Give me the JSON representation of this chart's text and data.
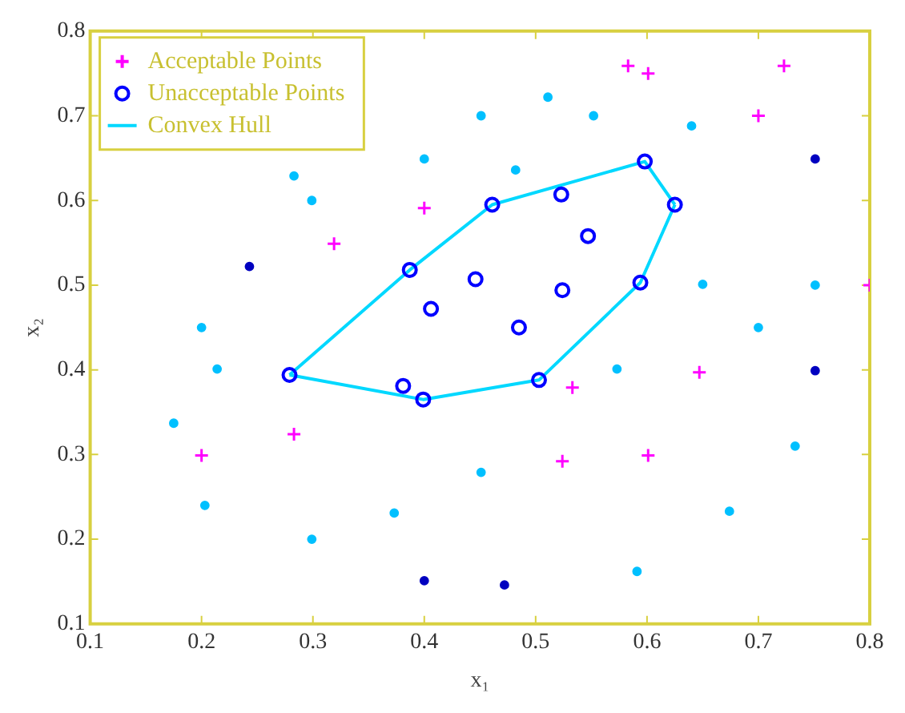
{
  "chart_data": {
    "type": "scatter",
    "xlabel": "x₁",
    "ylabel": "x₂",
    "xlim": [
      0.1,
      0.8
    ],
    "ylim": [
      0.1,
      0.8
    ],
    "xticks": [
      0.1,
      0.2,
      0.3,
      0.4,
      0.5,
      0.6,
      0.7,
      0.8
    ],
    "yticks": [
      0.1,
      0.2,
      0.3,
      0.4,
      0.5,
      0.6,
      0.7,
      0.8
    ],
    "grid": false,
    "legend": "top left",
    "series": [
      {
        "name": "Acceptable Points",
        "marker": "cross",
        "color": "#ff00ff",
        "x": [
          0.4,
          0.319,
          0.583,
          0.601,
          0.723,
          0.7,
          0.8,
          0.283,
          0.2,
          0.533,
          0.647,
          0.524,
          0.601
        ],
        "values": [
          0.591,
          0.549,
          0.759,
          0.75,
          0.759,
          0.7,
          0.5,
          0.324,
          0.299,
          0.379,
          0.397,
          0.292,
          0.299
        ]
      },
      {
        "name": "Unacceptable Points",
        "marker": "circle",
        "color": "#0000ff",
        "x": [
          0.279,
          0.387,
          0.461,
          0.598,
          0.625,
          0.594,
          0.503,
          0.399,
          0.406,
          0.523,
          0.547,
          0.446,
          0.524,
          0.485,
          0.381
        ],
        "values": [
          0.394,
          0.518,
          0.595,
          0.646,
          0.595,
          0.503,
          0.388,
          0.365,
          0.472,
          0.607,
          0.558,
          0.507,
          0.494,
          0.45,
          0.381
        ]
      },
      {
        "name": "Convex Hull",
        "type": "line",
        "marker": "none",
        "color": "#00d8ff",
        "x": [
          0.279,
          0.387,
          0.461,
          0.598,
          0.625
        ],
        "values": [
          0.394,
          0.518,
          0.595,
          0.646,
          0.595
        ]
      },
      {
        "type": "line",
        "marker": "none",
        "color": "#00d8ff",
        "x": [
          0.279,
          0.399,
          0.503,
          0.594,
          0.625
        ],
        "values": [
          0.394,
          0.365,
          0.388,
          0.503,
          0.595
        ]
      },
      {
        "marker": "circle",
        "color": "#00c0ff",
        "x": [
          0.4,
          0.283,
          0.299,
          0.2,
          0.511,
          0.451,
          0.552,
          0.64,
          0.482,
          0.65,
          0.751,
          0.7,
          0.214,
          0.175,
          0.203,
          0.373,
          0.299,
          0.573,
          0.451,
          0.733,
          0.674,
          0.591
        ],
        "values": [
          0.649,
          0.629,
          0.6,
          0.45,
          0.722,
          0.7,
          0.7,
          0.688,
          0.636,
          0.501,
          0.5,
          0.45,
          0.401,
          0.337,
          0.24,
          0.231,
          0.2,
          0.401,
          0.279,
          0.31,
          0.233,
          0.162
        ]
      },
      {
        "marker": "circle",
        "color": "#0000c0",
        "x": [
          0.243,
          0.751,
          0.4,
          0.751,
          0.472
        ],
        "values": [
          0.522,
          0.649,
          0.151,
          0.399,
          0.146
        ]
      }
    ]
  }
}
